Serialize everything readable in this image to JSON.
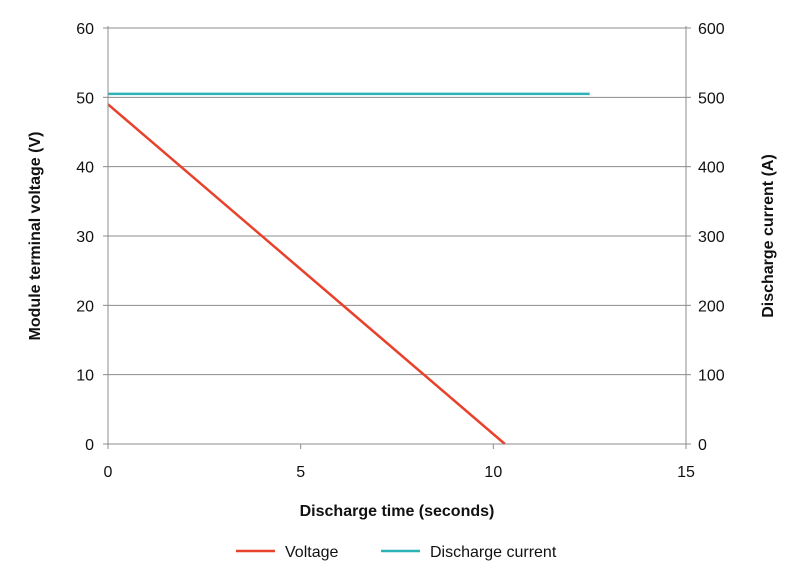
{
  "chart_data": {
    "type": "line",
    "x_axis": {
      "label": "Discharge time (seconds)",
      "range": [
        0,
        15
      ],
      "ticks": [
        "0",
        "5",
        "10",
        "15"
      ]
    },
    "y_axis_left": {
      "label": "Module terminal voltage (V)",
      "range": [
        0,
        60
      ],
      "ticks": [
        "0",
        "10",
        "20",
        "30",
        "40",
        "50",
        "60"
      ]
    },
    "y_axis_right": {
      "label": "Discharge current (A)",
      "range": [
        0,
        600
      ],
      "ticks": [
        "0",
        "100",
        "200",
        "300",
        "400",
        "500",
        "600"
      ]
    },
    "grid": "horizontal",
    "legend_position": "bottom",
    "series": [
      {
        "name": "Voltage",
        "axis": "left",
        "color": "#e8412c",
        "points": [
          [
            0,
            49
          ],
          [
            10.3,
            0
          ]
        ]
      },
      {
        "name": "Discharge current",
        "axis": "right",
        "color": "#2bb3b8",
        "points": [
          [
            0,
            505
          ],
          [
            12.5,
            505
          ]
        ]
      }
    ]
  }
}
